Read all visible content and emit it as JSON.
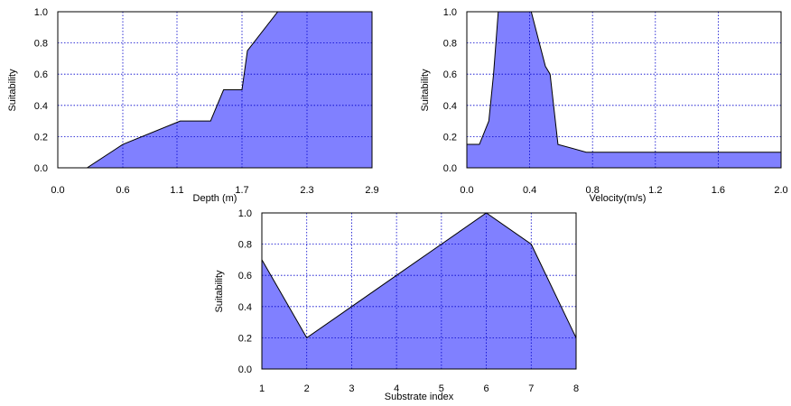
{
  "chart_data": [
    {
      "type": "area",
      "title": "",
      "xlabel": "Depth (m)",
      "ylabel": "Suitability",
      "xlim": [
        0.0,
        2.9
      ],
      "ylim": [
        0.0,
        1.0
      ],
      "xticks": [
        "0.0",
        "0.6",
        "1.1",
        "1.7",
        "2.3",
        "2.9"
      ],
      "yticks": [
        "0.0",
        "0.2",
        "0.4",
        "0.6",
        "0.8",
        "1.0"
      ],
      "grid": true,
      "fill_color": "#8080ff",
      "x": [
        0.0,
        0.27,
        0.6,
        1.13,
        1.41,
        1.53,
        1.7,
        1.75,
        2.03,
        2.9
      ],
      "y": [
        0.0,
        0.0,
        0.15,
        0.3,
        0.3,
        0.5,
        0.5,
        0.75,
        1.0,
        1.0
      ]
    },
    {
      "type": "area",
      "title": "",
      "xlabel": "Velocity(m/s)",
      "ylabel": "Suitability",
      "xlim": [
        0.0,
        2.0
      ],
      "ylim": [
        0.0,
        1.0
      ],
      "xticks": [
        "0.0",
        "0.4",
        "0.8",
        "1.2",
        "1.6",
        "2.0"
      ],
      "yticks": [
        "0.0",
        "0.2",
        "0.4",
        "0.6",
        "0.8",
        "1.0"
      ],
      "grid": true,
      "fill_color": "#8080ff",
      "x": [
        0.0,
        0.08,
        0.14,
        0.17,
        0.2,
        0.21,
        0.41,
        0.5,
        0.53,
        0.58,
        0.76,
        2.0
      ],
      "y": [
        0.15,
        0.15,
        0.3,
        0.6,
        1.0,
        1.0,
        1.0,
        0.65,
        0.6,
        0.15,
        0.1,
        0.1
      ]
    },
    {
      "type": "area",
      "title": "",
      "xlabel": "Substrate index",
      "ylabel": "Suitability",
      "xlim": [
        1,
        8
      ],
      "ylim": [
        0.0,
        1.0
      ],
      "xticks": [
        "1",
        "2",
        "3",
        "4",
        "5",
        "6",
        "7",
        "8"
      ],
      "yticks": [
        "0.0",
        "0.2",
        "0.4",
        "0.6",
        "0.8",
        "1.0"
      ],
      "grid": true,
      "fill_color": "#8080ff",
      "x": [
        1,
        2,
        3,
        4,
        5,
        6,
        7,
        8
      ],
      "y": [
        0.7,
        0.2,
        0.4,
        0.6,
        0.8,
        1.0,
        0.8,
        0.2
      ]
    }
  ]
}
